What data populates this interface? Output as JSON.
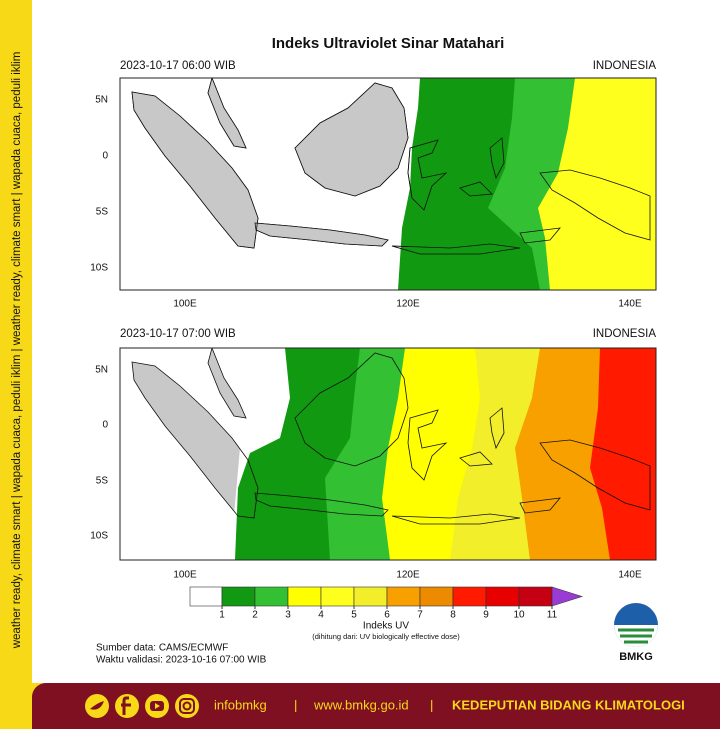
{
  "title": "Indeks Ultraviolet Sinar Matahari",
  "panels": [
    {
      "time": "2023-10-17  06:00 WIB",
      "region": "INDONESIA"
    },
    {
      "time": "2023-10-17  07:00 WIB",
      "region": "INDONESIA"
    }
  ],
  "lat_ticks": [
    "5N",
    "0",
    "5S",
    "10S"
  ],
  "lon_ticks": [
    "100E",
    "120E",
    "140E"
  ],
  "colorbar": {
    "ticks": [
      1,
      2,
      3,
      4,
      5,
      6,
      7,
      8,
      9,
      10,
      11
    ],
    "colors": [
      "#ffffff",
      "#119a11",
      "#33c033",
      "#ffff00",
      "#ffff1e",
      "#f2ef2a",
      "#f7a000",
      "#ec8a00",
      "#ff1a00",
      "#e80000",
      "#c40012",
      "#9a3bd6"
    ],
    "label": "Indeks UV",
    "note": "(dihitung dari: UV biologically effective dose)"
  },
  "source": "Sumber data: CAMS/ECMWF",
  "validity": "Waktu validasi: 2023-10-16 07:00 WIB",
  "logo": "BMKG",
  "side_text": "weather ready, climate smart  |  wapada cuaca, peduli iklim  |  weather ready, climate smart  |  wapada cuaca, peduli iklim",
  "footer": {
    "handle": "infobmkg",
    "separator": "|",
    "website": "www.bmkg.go.id",
    "agency": "KEDEPUTIAN BIDANG KLIMATOLOGI"
  }
}
